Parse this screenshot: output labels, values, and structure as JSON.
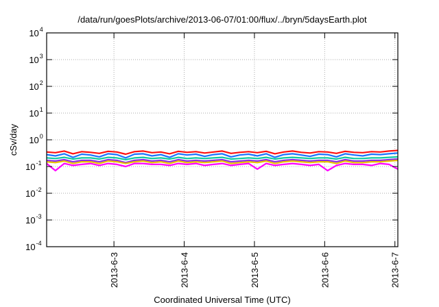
{
  "chart_data": {
    "type": "line",
    "title": "/data/run/goesPlots/archive/2013-06-07/01:00/flux/../bryn/5daysEarth.plot",
    "xlabel": "Coordinated Universal Time (UTC)",
    "ylabel": "cSv/day",
    "yscale": "log",
    "ylim": [
      0.0001,
      10000
    ],
    "y_ticks": [
      {
        "value": 10000,
        "base": "10",
        "exp": "4"
      },
      {
        "value": 1000,
        "base": "10",
        "exp": "3"
      },
      {
        "value": 100,
        "base": "10",
        "exp": "2"
      },
      {
        "value": 10,
        "base": "10",
        "exp": "1"
      },
      {
        "value": 1,
        "base": "10",
        "exp": "0"
      },
      {
        "value": 0.1,
        "base": "10",
        "exp": "-1"
      },
      {
        "value": 0.01,
        "base": "10",
        "exp": "-2"
      },
      {
        "value": 0.001,
        "base": "10",
        "exp": "-3"
      },
      {
        "value": 0.0001,
        "base": "10",
        "exp": "-4"
      }
    ],
    "x_unit": "day of June 2013",
    "xlim": [
      2.0417,
      7.0417
    ],
    "x_ticks": [
      {
        "value": 3,
        "label": "2013-6-3"
      },
      {
        "value": 4,
        "label": "2013-6-4"
      },
      {
        "value": 5,
        "label": "2013-6-5"
      },
      {
        "value": 6,
        "label": "2013-6-6"
      },
      {
        "value": 7,
        "label": "2013-6-7"
      }
    ],
    "grid": true,
    "x_start": 2.0417,
    "x_step_hours": 3,
    "series": [
      {
        "name": "red",
        "color": "#ff1010",
        "values": [
          0.35,
          0.33,
          0.38,
          0.3,
          0.36,
          0.34,
          0.31,
          0.37,
          0.35,
          0.29,
          0.36,
          0.38,
          0.33,
          0.35,
          0.3,
          0.37,
          0.34,
          0.36,
          0.32,
          0.35,
          0.38,
          0.31,
          0.34,
          0.36,
          0.33,
          0.37,
          0.3,
          0.35,
          0.38,
          0.34,
          0.32,
          0.36,
          0.35,
          0.31,
          0.37,
          0.34,
          0.33,
          0.36,
          0.35,
          0.38,
          0.4
        ]
      },
      {
        "name": "blue",
        "color": "#1a73ff",
        "values": [
          0.28,
          0.25,
          0.3,
          0.22,
          0.29,
          0.27,
          0.23,
          0.3,
          0.28,
          0.21,
          0.29,
          0.3,
          0.25,
          0.28,
          0.22,
          0.3,
          0.27,
          0.29,
          0.24,
          0.28,
          0.3,
          0.23,
          0.27,
          0.29,
          0.25,
          0.3,
          0.22,
          0.28,
          0.3,
          0.27,
          0.24,
          0.29,
          0.28,
          0.23,
          0.3,
          0.27,
          0.25,
          0.29,
          0.28,
          0.3,
          0.32
        ]
      },
      {
        "name": "teal",
        "color": "#10c8a0",
        "values": [
          0.21,
          0.2,
          0.22,
          0.19,
          0.21,
          0.21,
          0.19,
          0.22,
          0.21,
          0.18,
          0.21,
          0.22,
          0.2,
          0.21,
          0.19,
          0.22,
          0.2,
          0.21,
          0.2,
          0.21,
          0.22,
          0.19,
          0.2,
          0.21,
          0.2,
          0.22,
          0.19,
          0.21,
          0.22,
          0.21,
          0.2,
          0.21,
          0.21,
          0.19,
          0.22,
          0.2,
          0.2,
          0.21,
          0.21,
          0.22,
          0.23
        ]
      },
      {
        "name": "purple",
        "color": "#8a2be2",
        "values": [
          0.17,
          0.16,
          0.18,
          0.15,
          0.17,
          0.17,
          0.15,
          0.18,
          0.17,
          0.14,
          0.17,
          0.18,
          0.16,
          0.17,
          0.15,
          0.18,
          0.16,
          0.17,
          0.16,
          0.17,
          0.18,
          0.15,
          0.16,
          0.17,
          0.16,
          0.18,
          0.15,
          0.17,
          0.18,
          0.17,
          0.16,
          0.17,
          0.17,
          0.15,
          0.18,
          0.16,
          0.16,
          0.17,
          0.17,
          0.18,
          0.19
        ]
      },
      {
        "name": "yellow",
        "color": "#e8c000",
        "values": [
          0.15,
          0.14,
          0.16,
          0.13,
          0.15,
          0.15,
          0.13,
          0.16,
          0.15,
          0.13,
          0.15,
          0.16,
          0.14,
          0.15,
          0.13,
          0.16,
          0.14,
          0.15,
          0.14,
          0.15,
          0.16,
          0.13,
          0.14,
          0.15,
          0.14,
          0.16,
          0.13,
          0.15,
          0.16,
          0.15,
          0.14,
          0.15,
          0.15,
          0.13,
          0.16,
          0.14,
          0.14,
          0.15,
          0.15,
          0.16,
          0.17
        ]
      },
      {
        "name": "magenta",
        "color": "#ff00ff",
        "values": [
          0.13,
          0.07,
          0.13,
          0.11,
          0.12,
          0.13,
          0.11,
          0.13,
          0.12,
          0.1,
          0.13,
          0.13,
          0.12,
          0.12,
          0.11,
          0.13,
          0.12,
          0.13,
          0.11,
          0.12,
          0.13,
          0.11,
          0.12,
          0.13,
          0.08,
          0.13,
          0.11,
          0.12,
          0.13,
          0.12,
          0.11,
          0.12,
          0.07,
          0.11,
          0.13,
          0.12,
          0.12,
          0.11,
          0.13,
          0.12,
          0.08
        ]
      }
    ]
  }
}
